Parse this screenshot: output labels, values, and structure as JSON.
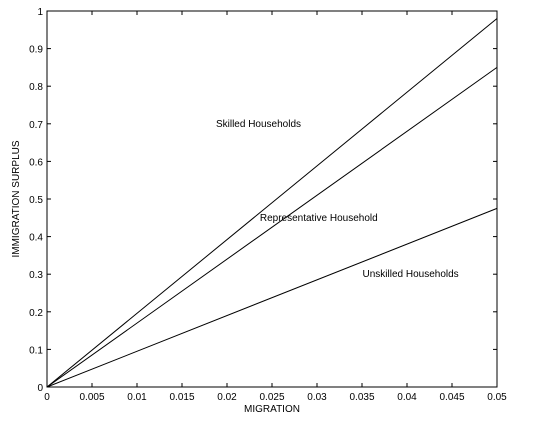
{
  "chart_data": {
    "type": "line",
    "title": "",
    "xlabel": "MIGRATION",
    "ylabel": "IMMIGRATION SURPLUS",
    "xlim": [
      0,
      0.05
    ],
    "ylim": [
      0,
      1
    ],
    "xticks": [
      0,
      0.005,
      0.01,
      0.015,
      0.02,
      0.025,
      0.03,
      0.035,
      0.04,
      0.045,
      0.05
    ],
    "xtick_labels": [
      "0",
      "0.005",
      "0.01",
      "0.015",
      "0.02",
      "0.025",
      "0.03",
      "0.035",
      "0.04",
      "0.045",
      "0.05"
    ],
    "yticks": [
      0,
      0.1,
      0.2,
      0.3,
      0.4,
      0.5,
      0.6,
      0.7,
      0.8,
      0.9,
      1
    ],
    "ytick_labels": [
      "0",
      "0.1",
      "0.2",
      "0.3",
      "0.4",
      "0.5",
      "0.6",
      "0.7",
      "0.8",
      "0.9",
      "1"
    ],
    "grid": false,
    "legend": "none",
    "line_color": "#000000",
    "series": [
      {
        "name": "Skilled Households",
        "x": [
          0,
          0.05
        ],
        "y": [
          0,
          0.98
        ],
        "label_at": [
          0.0235,
          0.7
        ]
      },
      {
        "name": "Representative Household",
        "x": [
          0,
          0.05
        ],
        "y": [
          0,
          0.85
        ],
        "label_at": [
          0.0302,
          0.45
        ]
      },
      {
        "name": "Unskilled Households",
        "x": [
          0,
          0.05
        ],
        "y": [
          0,
          0.475
        ],
        "label_at": [
          0.0404,
          0.3
        ]
      }
    ]
  }
}
